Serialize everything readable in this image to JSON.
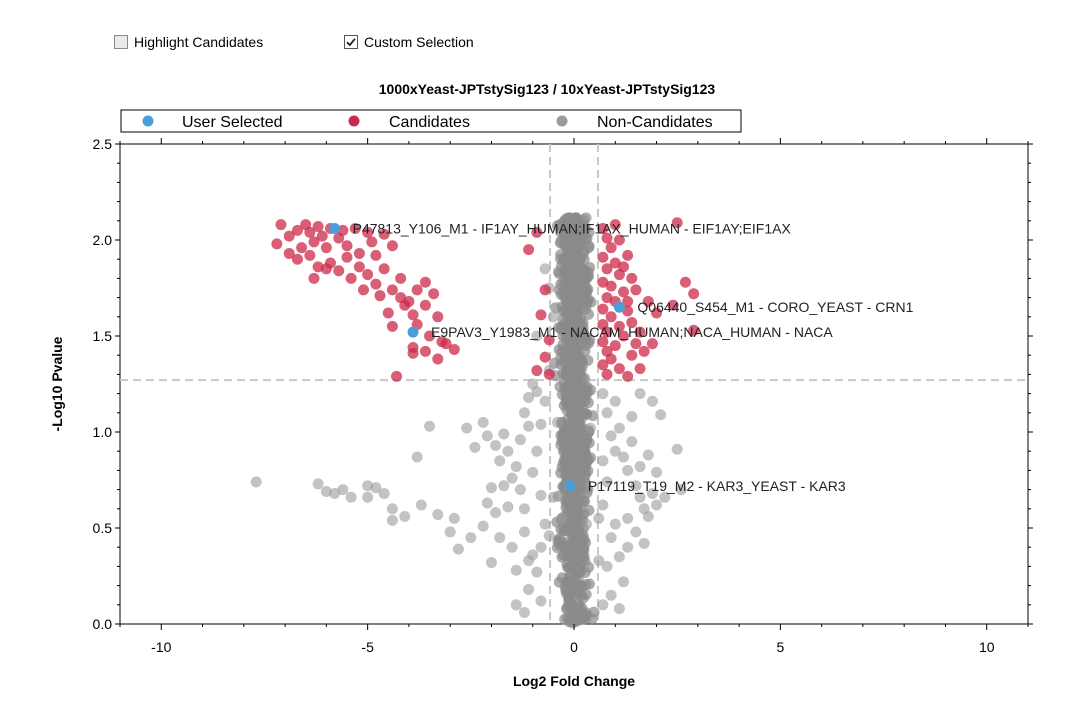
{
  "controls": {
    "highlight_candidates": {
      "label": "Highlight Candidates",
      "checked": false
    },
    "custom_selection": {
      "label": "Custom Selection",
      "checked": true
    }
  },
  "chart_data": {
    "type": "scatter",
    "title": "1000xYeast-JPTstySig123 / 10xYeast-JPTstySig123",
    "xlabel": "Log2 Fold Change",
    "ylabel": "-Log10 Pvalue",
    "xlim": [
      -11,
      11
    ],
    "ylim": [
      0,
      2.5
    ],
    "x_ticks": [
      -10,
      -5,
      0,
      5,
      10
    ],
    "y_ticks": [
      0.0,
      0.5,
      1.0,
      1.5,
      2.0,
      2.5
    ],
    "y_tick_labels": [
      "0.0",
      "0.5",
      "1.0",
      "1.5",
      "2.0",
      "2.5"
    ],
    "thresholds": {
      "fold_change": [
        -0.58,
        0.58
      ],
      "pvalue": 1.27
    },
    "legend_position": "top",
    "colors": {
      "user_selected": "#4a9fd8",
      "candidates": "#cc2a4a",
      "non_candidates": "#9b9b9b"
    },
    "series": [
      {
        "name": "User Selected",
        "points": [
          {
            "x": -5.8,
            "y": 2.06,
            "label": "P47813_Y106_M1 - IF1AY_HUMAN;IF1AX_HUMAN - EIF1AY;EIF1AX"
          },
          {
            "x": 1.1,
            "y": 1.65,
            "label": "Q06440_S454_M1 - CORO_YEAST - CRN1"
          },
          {
            "x": -3.9,
            "y": 1.52,
            "label": "E9PAV3_Y1983_M1 - NACAM_HUMAN;NACA_HUMAN - NACA"
          },
          {
            "x": -0.1,
            "y": 0.72,
            "label": "P17119_T19_M2 - KAR3_YEAST - KAR3"
          }
        ]
      },
      {
        "name": "Candidates",
        "points": [
          [
            -7.1,
            2.08
          ],
          [
            -6.9,
            2.02
          ],
          [
            -6.7,
            2.05
          ],
          [
            -6.5,
            2.08
          ],
          [
            -6.4,
            2.04
          ],
          [
            -6.3,
            1.99
          ],
          [
            -6.2,
            2.07
          ],
          [
            -6.1,
            2.02
          ],
          [
            -6.0,
            1.96
          ],
          [
            -5.9,
            2.06
          ],
          [
            -5.7,
            2.01
          ],
          [
            -5.6,
            2.05
          ],
          [
            -5.5,
            1.97
          ],
          [
            -5.3,
            2.06
          ],
          [
            -5.2,
            1.93
          ],
          [
            -5.0,
            2.04
          ],
          [
            -4.9,
            1.99
          ],
          [
            -4.8,
            1.92
          ],
          [
            -4.6,
            2.03
          ],
          [
            -4.4,
            1.97
          ],
          [
            -6.6,
            1.96
          ],
          [
            -6.4,
            1.92
          ],
          [
            -6.2,
            1.86
          ],
          [
            -5.9,
            1.88
          ],
          [
            -5.7,
            1.84
          ],
          [
            -5.5,
            1.91
          ],
          [
            -5.4,
            1.8
          ],
          [
            -5.2,
            1.86
          ],
          [
            -5.0,
            1.82
          ],
          [
            -4.8,
            1.77
          ],
          [
            -4.6,
            1.85
          ],
          [
            -4.4,
            1.74
          ],
          [
            -4.2,
            1.8
          ],
          [
            -4.0,
            1.68
          ],
          [
            -3.8,
            1.74
          ],
          [
            -3.6,
            1.78
          ],
          [
            -3.4,
            1.72
          ],
          [
            -4.5,
            1.62
          ],
          [
            -4.2,
            1.7
          ],
          [
            -3.9,
            1.61
          ],
          [
            -3.6,
            1.66
          ],
          [
            -3.3,
            1.6
          ],
          [
            -4.4,
            1.55
          ],
          [
            -4.1,
            1.66
          ],
          [
            -3.8,
            1.56
          ],
          [
            -3.5,
            1.5
          ],
          [
            -3.2,
            1.47
          ],
          [
            -2.9,
            1.43
          ],
          [
            -3.9,
            1.44
          ],
          [
            -3.6,
            1.42
          ],
          [
            -3.3,
            1.38
          ],
          [
            -3.9,
            1.41
          ],
          [
            -4.3,
            1.29
          ],
          [
            -3.1,
            1.46
          ],
          [
            -6.0,
            1.85
          ],
          [
            -6.3,
            1.8
          ],
          [
            -6.9,
            1.93
          ],
          [
            -7.2,
            1.98
          ],
          [
            -6.7,
            1.9
          ],
          [
            -5.1,
            1.74
          ],
          [
            -4.7,
            1.71
          ],
          [
            -0.9,
            2.04
          ],
          [
            -1.1,
            1.95
          ],
          [
            -0.7,
            1.74
          ],
          [
            -0.8,
            1.61
          ],
          [
            -0.6,
            1.48
          ],
          [
            -0.7,
            1.39
          ],
          [
            -0.9,
            1.32
          ],
          [
            -0.6,
            1.3
          ],
          [
            0.7,
            2.06
          ],
          [
            0.8,
            2.01
          ],
          [
            0.9,
            1.96
          ],
          [
            0.7,
            1.91
          ],
          [
            1.0,
            1.88
          ],
          [
            0.8,
            1.85
          ],
          [
            1.1,
            1.82
          ],
          [
            0.7,
            1.78
          ],
          [
            0.9,
            1.76
          ],
          [
            1.2,
            1.73
          ],
          [
            0.8,
            1.7
          ],
          [
            1.0,
            1.68
          ],
          [
            0.7,
            1.64
          ],
          [
            1.3,
            1.63
          ],
          [
            0.9,
            1.6
          ],
          [
            0.7,
            1.56
          ],
          [
            1.1,
            1.55
          ],
          [
            0.8,
            1.52
          ],
          [
            1.2,
            1.5
          ],
          [
            0.7,
            1.47
          ],
          [
            1.0,
            1.45
          ],
          [
            0.8,
            1.42
          ],
          [
            1.4,
            1.4
          ],
          [
            0.9,
            1.38
          ],
          [
            0.7,
            1.35
          ],
          [
            1.1,
            1.33
          ],
          [
            0.8,
            1.3
          ],
          [
            1.3,
            1.29
          ],
          [
            1.5,
            1.46
          ],
          [
            1.7,
            1.42
          ],
          [
            1.4,
            1.57
          ],
          [
            1.6,
            1.52
          ],
          [
            1.3,
            1.68
          ],
          [
            1.5,
            1.74
          ],
          [
            1.4,
            1.8
          ],
          [
            1.2,
            1.86
          ],
          [
            1.3,
            1.92
          ],
          [
            1.1,
            2.0
          ],
          [
            1.0,
            2.08
          ],
          [
            1.8,
            1.68
          ],
          [
            2.0,
            1.62
          ],
          [
            2.4,
            1.66
          ],
          [
            2.7,
            1.78
          ],
          [
            2.9,
            1.72
          ],
          [
            2.5,
            2.09
          ],
          [
            2.9,
            1.53
          ],
          [
            1.9,
            1.46
          ],
          [
            1.6,
            1.33
          ]
        ]
      },
      {
        "name": "Non-Candidates",
        "points": [
          [
            -7.7,
            0.74
          ],
          [
            -6.2,
            0.73
          ],
          [
            -6.0,
            0.69
          ],
          [
            -5.8,
            0.68
          ],
          [
            -5.6,
            0.7
          ],
          [
            -5.4,
            0.66
          ],
          [
            -5.0,
            0.72
          ],
          [
            -4.8,
            0.71
          ],
          [
            -4.6,
            0.68
          ],
          [
            -4.4,
            0.6
          ],
          [
            -4.1,
            0.56
          ],
          [
            -3.7,
            0.62
          ],
          [
            -3.3,
            0.57
          ],
          [
            -2.9,
            0.55
          ],
          [
            -4.4,
            0.54
          ],
          [
            -5.0,
            0.66
          ],
          [
            -3.8,
            0.87
          ],
          [
            -3.5,
            1.03
          ],
          [
            -2.6,
            1.02
          ],
          [
            -2.4,
            0.92
          ],
          [
            -2.2,
            1.05
          ],
          [
            -2.1,
            0.98
          ],
          [
            -1.9,
            0.93
          ],
          [
            -1.8,
            0.85
          ],
          [
            -1.7,
            0.99
          ],
          [
            -1.6,
            0.9
          ],
          [
            -1.5,
            0.76
          ],
          [
            -1.4,
            0.82
          ],
          [
            -1.3,
            0.96
          ],
          [
            -1.2,
            1.1
          ],
          [
            -1.1,
            1.18
          ],
          [
            -1.0,
            1.25
          ],
          [
            -0.9,
            1.21
          ],
          [
            -1.1,
            1.03
          ],
          [
            -1.3,
            0.7
          ],
          [
            -1.6,
            0.61
          ],
          [
            -1.9,
            0.58
          ],
          [
            -2.0,
            0.71
          ],
          [
            -2.1,
            0.63
          ],
          [
            -2.2,
            0.51
          ],
          [
            -1.8,
            0.45
          ],
          [
            -1.5,
            0.4
          ],
          [
            -1.2,
            0.48
          ],
          [
            -1.0,
            0.36
          ],
          [
            -0.9,
            0.27
          ],
          [
            -1.4,
            0.28
          ],
          [
            -1.1,
            0.18
          ],
          [
            -0.8,
            0.4
          ],
          [
            -0.7,
            0.52
          ],
          [
            -0.8,
            0.67
          ],
          [
            -1.0,
            0.79
          ],
          [
            -0.9,
            0.9
          ],
          [
            -0.8,
            1.04
          ],
          [
            -0.7,
            1.16
          ],
          [
            -0.6,
            1.32
          ],
          [
            -0.9,
            1.5
          ],
          [
            -0.5,
            1.6
          ],
          [
            -0.6,
            1.75
          ],
          [
            -0.7,
            1.85
          ],
          [
            -1.2,
            0.6
          ],
          [
            -1.7,
            0.72
          ],
          [
            -2.5,
            0.45
          ],
          [
            -3.0,
            0.48
          ],
          [
            -2.8,
            0.39
          ],
          [
            -1.4,
            0.1
          ],
          [
            -1.2,
            0.06
          ],
          [
            -0.8,
            0.12
          ],
          [
            -1.1,
            0.33
          ],
          [
            -2.0,
            0.32
          ],
          [
            0.7,
            1.2
          ],
          [
            0.8,
            1.1
          ],
          [
            0.9,
            0.98
          ],
          [
            1.0,
            0.9
          ],
          [
            1.1,
            1.02
          ],
          [
            1.2,
            0.87
          ],
          [
            1.3,
            0.8
          ],
          [
            1.4,
            0.95
          ],
          [
            1.5,
            0.72
          ],
          [
            1.6,
            0.66
          ],
          [
            1.7,
            0.6
          ],
          [
            1.8,
            0.56
          ],
          [
            1.9,
            0.68
          ],
          [
            2.0,
            0.62
          ],
          [
            2.2,
            0.66
          ],
          [
            1.5,
            0.48
          ],
          [
            1.3,
            0.4
          ],
          [
            1.1,
            0.35
          ],
          [
            1.0,
            0.52
          ],
          [
            0.9,
            0.45
          ],
          [
            0.8,
            0.3
          ],
          [
            1.2,
            0.22
          ],
          [
            0.9,
            0.15
          ],
          [
            0.7,
            0.62
          ],
          [
            0.7,
            0.85
          ],
          [
            0.8,
            0.74
          ],
          [
            1.6,
            0.82
          ],
          [
            1.8,
            0.88
          ],
          [
            2.0,
            0.79
          ],
          [
            1.4,
            1.08
          ],
          [
            1.0,
            1.16
          ],
          [
            1.6,
            1.2
          ],
          [
            1.9,
            1.16
          ],
          [
            2.1,
            1.09
          ],
          [
            2.5,
            0.91
          ],
          [
            2.6,
            0.7
          ],
          [
            0.7,
            0.1
          ],
          [
            1.1,
            0.08
          ],
          [
            1.3,
            0.55
          ],
          [
            1.7,
            0.42
          ],
          [
            -0.5,
            0.66
          ],
          [
            -0.6,
            0.46
          ],
          [
            0.6,
            0.55
          ],
          [
            0.6,
            0.33
          ],
          [
            -0.3,
            0.55
          ],
          [
            0.3,
            0.52
          ],
          [
            -0.4,
            1.05
          ],
          [
            0.4,
            1.02
          ]
        ],
        "dense_band": {
          "x_center": 0.0,
          "x_spread": 0.27,
          "y_min": 0.0,
          "y_max": 2.12,
          "count": 900
        }
      }
    ]
  }
}
